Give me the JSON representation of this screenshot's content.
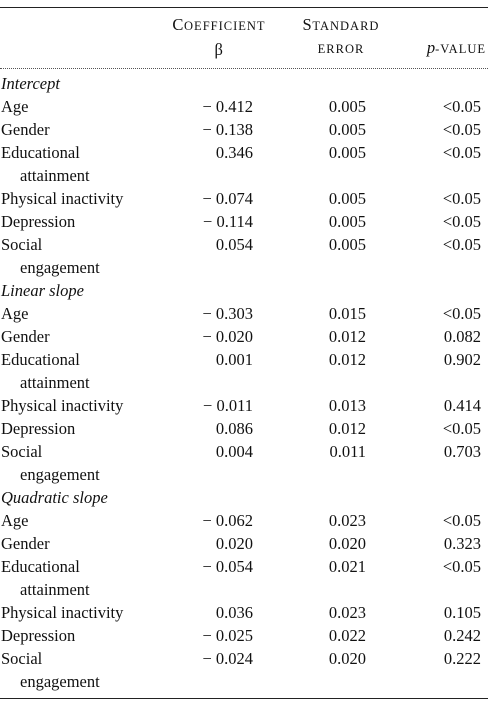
{
  "header": {
    "coef_word": "Coefficient",
    "coef_symbol": "β",
    "se_word": "Standard",
    "se_word2": "error",
    "p_italic": "p",
    "p_rest": "-value"
  },
  "sections": [
    {
      "title": "Intercept",
      "rows": [
        {
          "label": "Age",
          "label2": "",
          "coef": "− 0.412",
          "se": "0.005",
          "p": "<0.05"
        },
        {
          "label": "Gender",
          "label2": "",
          "coef": "− 0.138",
          "se": "0.005",
          "p": "<0.05"
        },
        {
          "label": "Educational",
          "label2": "attainment",
          "coef": "0.346",
          "se": "0.005",
          "p": "<0.05"
        },
        {
          "label": "Physical inactivity",
          "label2": "",
          "coef": "− 0.074",
          "se": "0.005",
          "p": "<0.05"
        },
        {
          "label": "Depression",
          "label2": "",
          "coef": "− 0.114",
          "se": "0.005",
          "p": "<0.05"
        },
        {
          "label": "Social",
          "label2": "engagement",
          "coef": "0.054",
          "se": "0.005",
          "p": "<0.05"
        }
      ]
    },
    {
      "title": "Linear slope",
      "rows": [
        {
          "label": "Age",
          "label2": "",
          "coef": "− 0.303",
          "se": "0.015",
          "p": "<0.05"
        },
        {
          "label": "Gender",
          "label2": "",
          "coef": "− 0.020",
          "se": "0.012",
          "p": "0.082"
        },
        {
          "label": "Educational",
          "label2": "attainment",
          "coef": "0.001",
          "se": "0.012",
          "p": "0.902"
        },
        {
          "label": "Physical inactivity",
          "label2": "",
          "coef": "− 0.011",
          "se": "0.013",
          "p": "0.414"
        },
        {
          "label": "Depression",
          "label2": "",
          "coef": "0.086",
          "se": "0.012",
          "p": "<0.05"
        },
        {
          "label": "Social",
          "label2": "engagement",
          "coef": "0.004",
          "se": "0.011",
          "p": "0.703"
        }
      ]
    },
    {
      "title": "Quadratic slope",
      "rows": [
        {
          "label": "Age",
          "label2": "",
          "coef": "− 0.062",
          "se": "0.023",
          "p": "<0.05"
        },
        {
          "label": "Gender",
          "label2": "",
          "coef": "0.020",
          "se": "0.020",
          "p": "0.323"
        },
        {
          "label": "Educational",
          "label2": "attainment",
          "coef": "− 0.054",
          "se": "0.021",
          "p": "<0.05"
        },
        {
          "label": "Physical inactivity",
          "label2": "",
          "coef": "0.036",
          "se": "0.023",
          "p": "0.105"
        },
        {
          "label": "Depression",
          "label2": "",
          "coef": "− 0.025",
          "se": "0.022",
          "p": "0.242"
        },
        {
          "label": "Social",
          "label2": "engagement",
          "coef": "− 0.024",
          "se": "0.020",
          "p": "0.222"
        }
      ]
    }
  ]
}
